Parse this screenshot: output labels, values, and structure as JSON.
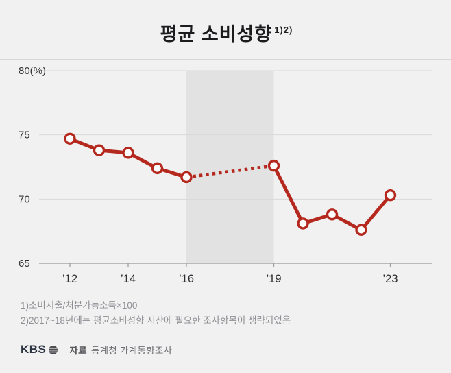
{
  "page": {
    "background": "#f1f1f2",
    "accent": "#b5281e"
  },
  "title": {
    "text": "평균 소비성향",
    "superscript": "1)2)"
  },
  "chart_data": {
    "type": "line",
    "title": "평균 소비성향",
    "x": [
      2012,
      2013,
      2014,
      2015,
      2016,
      2019,
      2020,
      2021,
      2022,
      2023
    ],
    "values": [
      74.7,
      73.8,
      73.6,
      72.4,
      71.7,
      72.6,
      68.1,
      68.8,
      67.6,
      70.3
    ],
    "dotted_segment": [
      2016,
      2019
    ],
    "shaded_region": {
      "from": 2016,
      "to": 2019
    },
    "ylim": [
      65,
      80
    ],
    "yticks": [
      80,
      75,
      70,
      65
    ],
    "ytick_labels": [
      "80(%)",
      "75",
      "70",
      "65"
    ],
    "xticks": [
      2012,
      2014,
      2016,
      2019,
      2023
    ],
    "xtick_labels": [
      "’12",
      "’14",
      "’16",
      "’19",
      "’23"
    ],
    "line_color": "#b5281e",
    "marker_fill": "#fcfcfc",
    "band_color": "#e2e2e3",
    "grid_color": "#d9d9db",
    "axis_color": "#9a9a9e",
    "grid": true,
    "legend": "none"
  },
  "footnotes": [
    "1)소비지출/처분가능소득×100",
    "2)2017~18년에는 평균소비성향 시산에 필요한 조사항목이 생략되었음"
  ],
  "footer": {
    "logo": "KBS",
    "source_label": "자료",
    "source_text": "통계청 가계동향조사"
  }
}
